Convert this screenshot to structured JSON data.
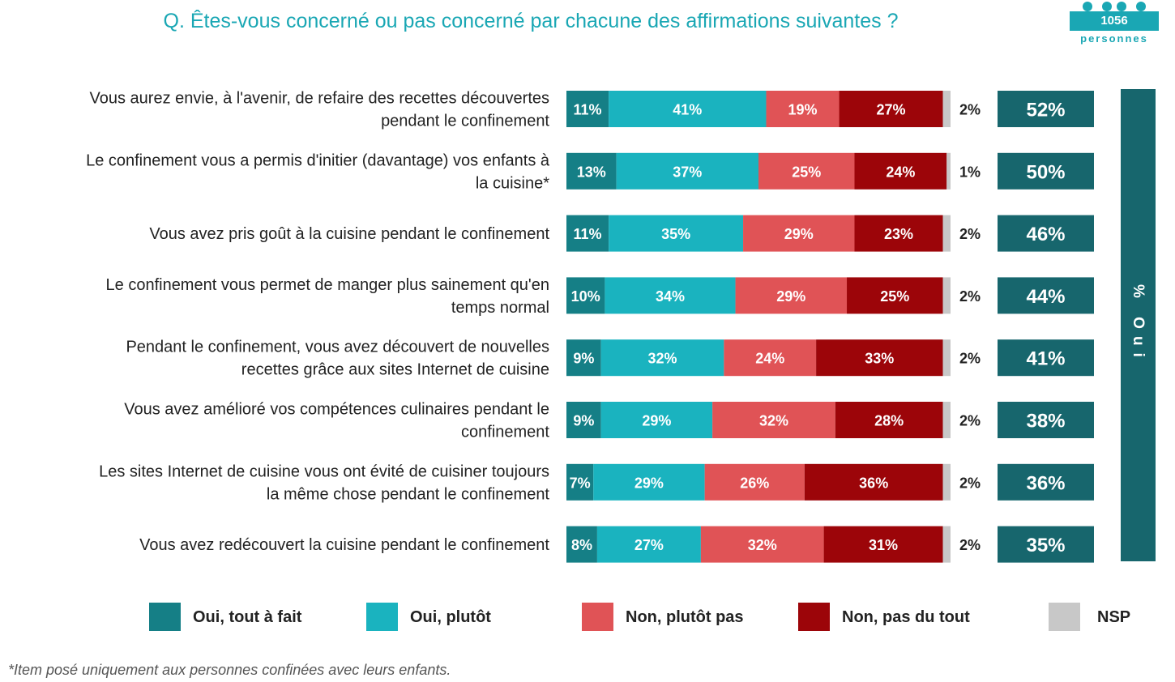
{
  "title": "Q. Êtes-vous concerné ou pas concerné par chacune des affirmations suivantes ?",
  "sample": {
    "count": "1056",
    "label": "personnes"
  },
  "oui_column_label": "% Oui",
  "footnote": "*Item posé uniquement aux personnes confinées avec leurs enfants.",
  "colors": {
    "oui_tout_a_fait": "#157f86",
    "oui_plutot": "#1ab3bf",
    "non_plutot_pas": "#e05356",
    "non_pas_du_tout": "#9c0509",
    "nsp": "#c8c8c8",
    "oui_total": "#17666d",
    "title": "#1aa7b4"
  },
  "chart_data": {
    "type": "bar",
    "orientation": "horizontal",
    "stacked": true,
    "title": "Q. Êtes-vous concerné ou pas concerné par chacune des affirmations suivantes ?",
    "legend_position": "bottom",
    "categories": [
      [
        "Vous aurez envie, à l'avenir, de refaire des recettes découvertes",
        "pendant le confinement"
      ],
      [
        "Le confinement vous a permis d'initier (davantage) vos enfants à",
        "la cuisine*"
      ],
      [
        "Vous avez pris goût à la cuisine pendant le confinement"
      ],
      [
        "Le confinement vous permet de manger plus sainement qu'en",
        "temps normal"
      ],
      [
        "Pendant le confinement, vous avez découvert de nouvelles",
        "recettes grâce aux sites Internet de cuisine"
      ],
      [
        "Vous avez amélioré vos compétences culinaires pendant le",
        "confinement"
      ],
      [
        "Les sites Internet de cuisine vous ont évité de cuisiner toujours",
        "la même chose pendant le confinement"
      ],
      [
        "Vous avez redécouvert la cuisine pendant le confinement"
      ]
    ],
    "series": [
      {
        "name": "Oui, tout à fait",
        "key": "oui_tout_a_fait",
        "values": [
          11,
          13,
          11,
          10,
          9,
          9,
          7,
          8
        ]
      },
      {
        "name": "Oui, plutôt",
        "key": "oui_plutot",
        "values": [
          41,
          37,
          35,
          34,
          32,
          29,
          29,
          27
        ]
      },
      {
        "name": "Non, plutôt pas",
        "key": "non_plutot_pas",
        "values": [
          19,
          25,
          29,
          29,
          24,
          32,
          26,
          32
        ]
      },
      {
        "name": "Non, pas du tout",
        "key": "non_pas_du_tout",
        "values": [
          27,
          24,
          23,
          25,
          33,
          28,
          36,
          31
        ]
      },
      {
        "name": "NSP",
        "key": "nsp",
        "values": [
          2,
          1,
          2,
          2,
          2,
          2,
          2,
          2
        ]
      }
    ],
    "oui_totals": [
      52,
      50,
      46,
      44,
      41,
      38,
      36,
      35
    ],
    "unit": "%"
  }
}
